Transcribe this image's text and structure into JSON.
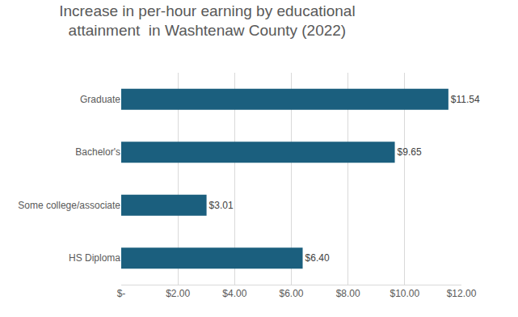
{
  "chart_data": {
    "type": "bar",
    "orientation": "horizontal",
    "title": "Increase in per-hour earning by educational attainment  in Washtenaw County (2022)",
    "categories": [
      "HS Diploma",
      "Some college/associate",
      "Bachelor's",
      "Graduate"
    ],
    "values": [
      6.4,
      3.01,
      9.65,
      11.54
    ],
    "value_labels": [
      "$6.40",
      "$3.01",
      "$9.65",
      "$11.54"
    ],
    "data_labels": true,
    "color": "#1b5f7e",
    "xlim": [
      0,
      12
    ],
    "xticks": [
      {
        "value": 0,
        "label": "$-"
      },
      {
        "value": 2,
        "label": "$2.00"
      },
      {
        "value": 4,
        "label": "$4.00"
      },
      {
        "value": 6,
        "label": "$6.00"
      },
      {
        "value": 8,
        "label": "$8.00"
      },
      {
        "value": 10,
        "label": "$10.00"
      },
      {
        "value": 12,
        "label": "$12.00"
      }
    ],
    "grid": true
  }
}
